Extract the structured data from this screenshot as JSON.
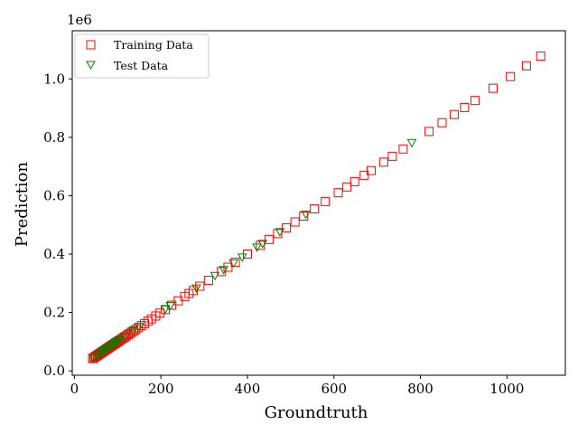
{
  "chart_data": {
    "type": "scatter",
    "title": "",
    "xlabel": "Groundtruth",
    "ylabel": "Prediction",
    "y_offset_label": "1e6",
    "xlim": [
      -5,
      1135
    ],
    "ylim": [
      -15000,
      1165000
    ],
    "x_ticks": [
      0,
      200,
      400,
      600,
      800,
      1000
    ],
    "x_tick_labels": [
      "0",
      "200",
      "400",
      "600",
      "800",
      "1000"
    ],
    "y_ticks": [
      0,
      200000,
      400000,
      600000,
      800000,
      1000000
    ],
    "y_tick_labels": [
      "0.0",
      "0.2",
      "0.4",
      "0.6",
      "0.8",
      "1.0"
    ],
    "grid": false,
    "legend_position": "top-left",
    "series": [
      {
        "name": "Training Data",
        "marker": "square",
        "color": "#ff0000",
        "points": [
          [
            42,
            42000
          ],
          [
            45,
            45000
          ],
          [
            48,
            48000
          ],
          [
            50,
            50000
          ],
          [
            53,
            53000
          ],
          [
            55,
            55000
          ],
          [
            58,
            58000
          ],
          [
            60,
            60000
          ],
          [
            63,
            63000
          ],
          [
            65,
            65000
          ],
          [
            68,
            68000
          ],
          [
            70,
            70000
          ],
          [
            73,
            73000
          ],
          [
            75,
            75000
          ],
          [
            78,
            78000
          ],
          [
            80,
            80000
          ],
          [
            83,
            83000
          ],
          [
            85,
            85000
          ],
          [
            88,
            88000
          ],
          [
            90,
            90000
          ],
          [
            93,
            93000
          ],
          [
            95,
            95000
          ],
          [
            98,
            98000
          ],
          [
            100,
            100000
          ],
          [
            103,
            103000
          ],
          [
            106,
            106000
          ],
          [
            110,
            110000
          ],
          [
            113,
            113000
          ],
          [
            116,
            116000
          ],
          [
            120,
            120000
          ],
          [
            124,
            124000
          ],
          [
            128,
            128000
          ],
          [
            132,
            132000
          ],
          [
            137,
            137000
          ],
          [
            142,
            142000
          ],
          [
            148,
            148000
          ],
          [
            155,
            155000
          ],
          [
            162,
            162000
          ],
          [
            170,
            170000
          ],
          [
            178,
            178000
          ],
          [
            188,
            188000
          ],
          [
            198,
            198000
          ],
          [
            210,
            210000
          ],
          [
            225,
            225000
          ],
          [
            240,
            240000
          ],
          [
            255,
            255000
          ],
          [
            265,
            265000
          ],
          [
            275,
            275000
          ],
          [
            290,
            290000
          ],
          [
            310,
            310000
          ],
          [
            340,
            340000
          ],
          [
            355,
            355000
          ],
          [
            372,
            372000
          ],
          [
            400,
            400000
          ],
          [
            430,
            430000
          ],
          [
            450,
            450000
          ],
          [
            470,
            470000
          ],
          [
            490,
            490000
          ],
          [
            510,
            510000
          ],
          [
            530,
            530000
          ],
          [
            555,
            555000
          ],
          [
            580,
            580000
          ],
          [
            610,
            610000
          ],
          [
            630,
            630000
          ],
          [
            648,
            648000
          ],
          [
            670,
            670000
          ],
          [
            686,
            686000
          ],
          [
            715,
            715000
          ],
          [
            735,
            735000
          ],
          [
            760,
            760000
          ],
          [
            820,
            820000
          ],
          [
            850,
            850000
          ],
          [
            878,
            878000
          ],
          [
            902,
            902000
          ],
          [
            926,
            926000
          ],
          [
            968,
            968000
          ],
          [
            1008,
            1008000
          ],
          [
            1045,
            1045000
          ],
          [
            1078,
            1078000
          ]
        ]
      },
      {
        "name": "Test Data",
        "marker": "triangle-down",
        "color": "#008000",
        "points": [
          [
            44,
            44000
          ],
          [
            52,
            52000
          ],
          [
            57,
            57000
          ],
          [
            62,
            62000
          ],
          [
            67,
            67000
          ],
          [
            72,
            72000
          ],
          [
            77,
            77000
          ],
          [
            82,
            82000
          ],
          [
            87,
            87000
          ],
          [
            92,
            92000
          ],
          [
            97,
            97000
          ],
          [
            105,
            105000
          ],
          [
            115,
            115000
          ],
          [
            135,
            135000
          ],
          [
            150,
            150000
          ],
          [
            210,
            210000
          ],
          [
            222,
            222000
          ],
          [
            282,
            282000
          ],
          [
            325,
            325000
          ],
          [
            345,
            345000
          ],
          [
            368,
            368000
          ],
          [
            388,
            388000
          ],
          [
            422,
            422000
          ],
          [
            435,
            435000
          ],
          [
            475,
            475000
          ],
          [
            535,
            535000
          ],
          [
            780,
            780000
          ]
        ]
      }
    ]
  }
}
